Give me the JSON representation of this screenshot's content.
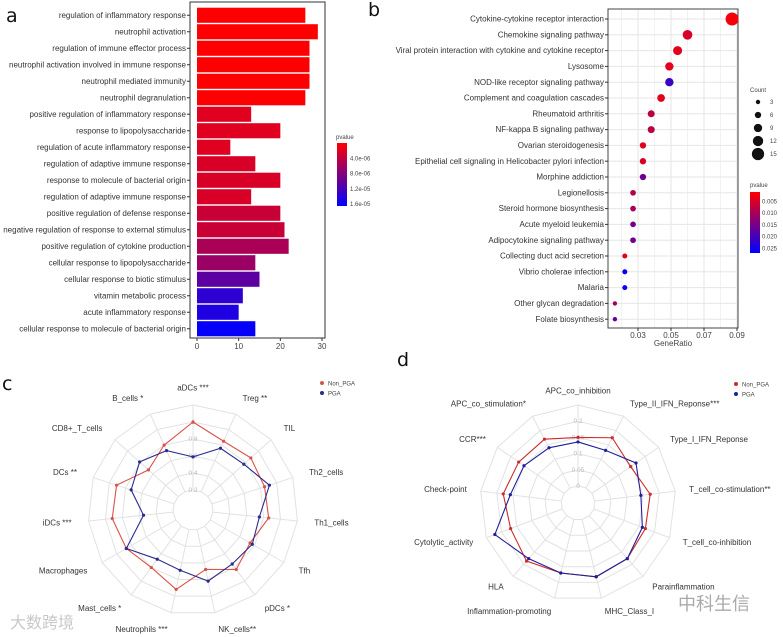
{
  "panels": {
    "a": "a",
    "b": "b",
    "c": "c",
    "d": "d"
  },
  "watermarks": {
    "left": "大数跨境",
    "right": "中科生信"
  },
  "chart_data": [
    {
      "id": "a",
      "type": "bar",
      "orientation": "horizontal",
      "categories": [
        "regulation of inflammatory response",
        "neutrophil activation",
        "regulation of immune effector process",
        "neutrophil activation involved in immune response",
        "neutrophil mediated immunity",
        "neutrophil degranulation",
        "positive regulation of inflammatory response",
        "response to lipopolysaccharide",
        "regulation of acute inflammatory response",
        "regulation of adaptive immune response",
        "response to molecule of bacterial origin",
        "regulation of adaptive immune response",
        "positive regulation of defense response",
        "negative regulation of response to external stimulus",
        "positive regulation of cytokine production",
        "cellular response to lipopolysaccharide",
        "cellular response to biotic stimulus",
        "vitamin metabolic process",
        "acute inflammatory response",
        "cellular response to molecule of bacterial origin"
      ],
      "values": [
        26,
        29,
        27,
        27,
        27,
        26,
        13,
        20,
        8,
        14,
        20,
        13,
        20,
        21,
        22,
        14,
        15,
        11,
        10,
        14
      ],
      "pvalues": [
        1e-07,
        1e-07,
        1e-07,
        1e-07,
        1e-07,
        1e-07,
        2e-06,
        2e-06,
        2e-06,
        2.5e-06,
        2.5e-06,
        2.5e-06,
        3.5e-06,
        3.5e-06,
        5.5e-06,
        6.5e-06,
        1.05e-05,
        1.35e-05,
        1.45e-05,
        1.62e-05
      ],
      "xlim": [
        0,
        30
      ],
      "xticks": [
        "0",
        "10",
        "20",
        "30"
      ],
      "xtick_values": [
        0,
        10,
        20,
        30
      ],
      "legend": {
        "title": "pvalue",
        "labels": [
          "4.0e-06",
          "8.0e-06",
          "1.2e-05",
          "1.6e-05"
        ],
        "values": [
          4e-06,
          8e-06,
          1.2e-05,
          1.6e-05
        ],
        "range": [
          0,
          1.65e-05
        ],
        "low_color": "#ff0000",
        "high_color": "#0000ff"
      }
    },
    {
      "id": "b",
      "type": "scatter",
      "categories": [
        "Cytokine-cytokine receptor interaction",
        "Chemokine signaling pathway",
        "Viral protein interaction with cytokine and cytokine receptor",
        "Lysosome",
        "NOD-like receptor signaling pathway",
        "Complement and coagulation cascades",
        "Rheumatoid arthritis",
        "NF-kappa B signaling pathway",
        "Ovarian steroidogenesis",
        "Epithelial cell signaling in Helicobacter pylori infection",
        "Morphine addiction",
        "Legionellosis",
        "Steroid hormone biosynthesis",
        "Acute myeloid leukemia",
        "Adipocytokine signaling pathway",
        "Collecting duct acid secretion",
        "Vibrio cholerae infection",
        "Malaria",
        "Other glycan degradation",
        "Folate biosynthesis"
      ],
      "gene_ratio": [
        0.087,
        0.06,
        0.054,
        0.049,
        0.049,
        0.044,
        0.038,
        0.038,
        0.033,
        0.033,
        0.033,
        0.027,
        0.027,
        0.027,
        0.027,
        0.022,
        0.022,
        0.022,
        0.016,
        0.016
      ],
      "count": [
        16,
        11,
        10,
        9,
        9,
        8,
        7,
        7,
        6,
        6,
        6,
        5,
        5,
        5,
        5,
        4,
        4,
        4,
        3,
        3
      ],
      "pvalues": [
        0.002,
        0.005,
        0.004,
        0.004,
        0.021,
        0.004,
        0.008,
        0.008,
        0.004,
        0.005,
        0.016,
        0.009,
        0.01,
        0.015,
        0.016,
        0.004,
        0.026,
        0.026,
        0.01,
        0.017
      ],
      "xlabel": "GeneRatio",
      "xlim": [
        0.012,
        0.091
      ],
      "xticks": [
        "0.03",
        "0.05",
        "0.07",
        "0.09"
      ],
      "xtick_values": [
        0.03,
        0.05,
        0.07,
        0.09
      ],
      "size_legend": {
        "title": "Count",
        "labels": [
          "3",
          "6",
          "9",
          "12",
          "15"
        ],
        "values": [
          3,
          6,
          9,
          12,
          15
        ]
      },
      "color_legend": {
        "title": "pvalue",
        "labels": [
          "0.005",
          "0.010",
          "0.015",
          "0.020",
          "0.025"
        ],
        "values": [
          0.005,
          0.01,
          0.015,
          0.02,
          0.025
        ],
        "range": [
          0.001,
          0.027
        ],
        "low_color": "#ff0000",
        "high_color": "#0000ff"
      }
    },
    {
      "id": "c",
      "type": "radar",
      "axes": [
        "aDCs ***",
        "Treg **",
        "TIL",
        "Th2_cells",
        "Th1_cells",
        "Tfh",
        "pDCs *",
        "NK_cells**",
        "Neutrophils ***",
        "Mast_cells *",
        "Macrophages",
        "iDCs ***",
        "DCs **",
        "CD8+_T_cells",
        "B_cells *"
      ],
      "rlim": [
        0.2,
        1.2
      ],
      "ring_values": [
        0.2,
        0.4,
        0.6,
        0.8,
        1.0,
        1.2
      ],
      "ring_labels": [
        "0.2",
        "0.4",
        "0.6",
        "0.8",
        "1"
      ],
      "series": [
        {
          "name": "Non_PGA",
          "color": "#d9534a",
          "values": [
            1.0,
            0.85,
            0.88,
            0.85,
            0.86,
            0.74,
            0.83,
            0.68,
            0.92,
            0.8,
            0.87,
            0.92,
            0.91,
            0.67,
            0.8
          ]
        },
        {
          "name": "PGA",
          "color": "#2b2b8c",
          "values": [
            0.59,
            0.76,
            0.77,
            0.91,
            0.75,
            0.77,
            0.75,
            0.82,
            0.69,
            0.68,
            0.87,
            0.55,
            0.73,
            0.81,
            0.73
          ]
        }
      ],
      "legend": "top-right"
    },
    {
      "id": "d",
      "type": "radar",
      "axes": [
        "APC_co_inhibition",
        "Type_II_IFN_Reponse***",
        "Type_I_IFN_Reponse",
        "T_cell_co-stimulation**",
        "T_cell_co-inhibition",
        "Parainflammation",
        "MHC_Class_I",
        "Inflammation-promoting",
        "HLA",
        "Cytolytic_activity",
        "Check-point",
        "CCR***",
        "APC_co_stimulation*"
      ],
      "rlim": [
        0,
        0.25
      ],
      "ring_values": [
        0,
        0.05,
        0.1,
        0.15,
        0.2,
        0.25
      ],
      "ring_labels": [
        "0",
        "0.05",
        "0.1",
        "0.15",
        "0.2"
      ],
      "series": [
        {
          "name": "Non_PGA",
          "color": "#cc2a2a",
          "values": [
            0.15,
            0.175,
            0.145,
            0.172,
            0.17,
            0.177,
            0.182,
            0.17,
            0.187,
            0.17,
            0.18,
            0.17,
            0.17
          ]
        },
        {
          "name": "PGA",
          "color": "#1f1f99",
          "values": [
            0.136,
            0.131,
            0.165,
            0.143,
            0.16,
            0.177,
            0.182,
            0.17,
            0.177,
            0.222,
            0.158,
            0.15,
            0.14
          ]
        }
      ],
      "legend": "top-right"
    }
  ]
}
